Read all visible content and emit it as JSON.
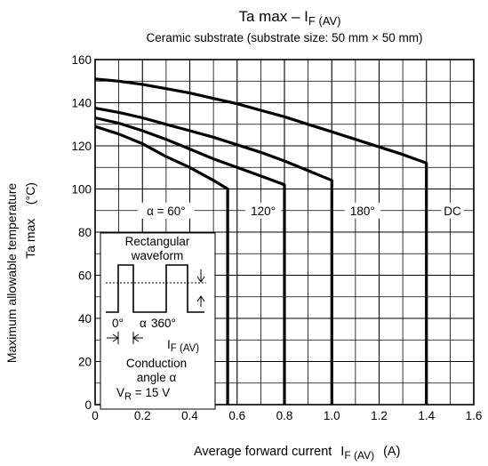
{
  "chart_data": {
    "type": "line",
    "title": "Ta max – I",
    "title_sub": "F (AV)",
    "subtitle": "Ceramic substrate (substrate size: 50 mm × 50 mm)",
    "xlabel_text": "Average forward current",
    "xlabel_symbol": "I",
    "xlabel_symbol_sub": "F (AV)",
    "xlabel_unit": "(A)",
    "ylabel_line1": "Maximum allowable temperature",
    "ylabel_line2": "Ta max    (°C)",
    "xlim": [
      0,
      1.6
    ],
    "ylim": [
      0,
      160
    ],
    "x_ticks": [
      "0",
      "0.2",
      "0.4",
      "0.6",
      "0.8",
      "1.0",
      "1.2",
      "1.4",
      "1.6"
    ],
    "y_ticks": [
      "0",
      "20",
      "40",
      "60",
      "80",
      "100",
      "120",
      "140",
      "160"
    ],
    "x_tick_values": [
      0,
      0.2,
      0.4,
      0.6,
      0.8,
      1.0,
      1.2,
      1.4,
      1.6
    ],
    "y_tick_values": [
      0,
      20,
      40,
      60,
      80,
      100,
      120,
      140,
      160
    ],
    "grid": true,
    "series": [
      {
        "name": "α = 60°",
        "points": [
          [
            0,
            129
          ],
          [
            0.1,
            125.5
          ],
          [
            0.2,
            121
          ],
          [
            0.3,
            115
          ],
          [
            0.4,
            110
          ],
          [
            0.5,
            104
          ],
          [
            0.56,
            100
          ],
          [
            0.56,
            0
          ]
        ]
      },
      {
        "name": "120°",
        "points": [
          [
            0,
            133
          ],
          [
            0.1,
            130.5
          ],
          [
            0.2,
            127
          ],
          [
            0.3,
            123
          ],
          [
            0.4,
            118.5
          ],
          [
            0.5,
            114
          ],
          [
            0.6,
            110
          ],
          [
            0.7,
            106
          ],
          [
            0.8,
            102
          ],
          [
            0.8,
            0
          ]
        ]
      },
      {
        "name": "180°",
        "points": [
          [
            0,
            137.5
          ],
          [
            0.1,
            135.5
          ],
          [
            0.2,
            133
          ],
          [
            0.3,
            130
          ],
          [
            0.4,
            127
          ],
          [
            0.5,
            124
          ],
          [
            0.6,
            120.5
          ],
          [
            0.7,
            117
          ],
          [
            0.8,
            113
          ],
          [
            0.9,
            108.5
          ],
          [
            1.0,
            104
          ],
          [
            1.0,
            0
          ]
        ]
      },
      {
        "name": "DC",
        "points": [
          [
            0,
            151
          ],
          [
            0.1,
            150
          ],
          [
            0.2,
            148.5
          ],
          [
            0.3,
            146.5
          ],
          [
            0.4,
            144.5
          ],
          [
            0.5,
            142
          ],
          [
            0.6,
            139.5
          ],
          [
            0.7,
            136.5
          ],
          [
            0.8,
            133.5
          ],
          [
            0.9,
            130
          ],
          [
            1.0,
            126.5
          ],
          [
            1.1,
            123
          ],
          [
            1.2,
            119.5
          ],
          [
            1.3,
            116
          ],
          [
            1.4,
            112
          ],
          [
            1.4,
            0
          ]
        ]
      }
    ],
    "inset": {
      "line1": "Rectangular",
      "line2": "waveform",
      "angle_start": "0°",
      "angle_alpha": "α",
      "angle_end": "360°",
      "current_symbol": "I",
      "current_sub": "F (AV)",
      "cond_line1": "Conduction",
      "cond_line2": "angle α",
      "vr_symbol": "V",
      "vr_sub": "R",
      "vr_value": " = 15 V"
    }
  }
}
